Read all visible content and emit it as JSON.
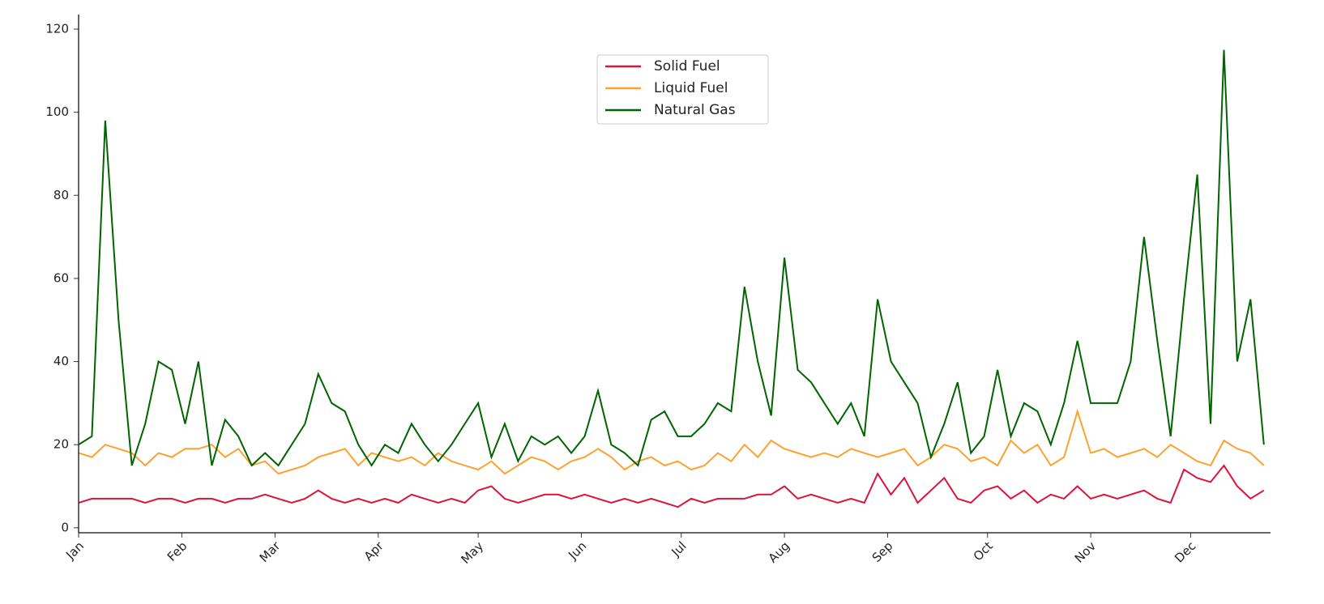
{
  "chart_data": {
    "type": "line",
    "x": [
      0,
      4,
      8,
      12,
      16,
      20,
      24,
      28,
      32,
      36,
      40,
      44,
      48,
      52,
      56,
      60,
      64,
      68,
      72,
      76,
      80,
      84,
      88,
      92,
      96,
      100,
      104,
      108,
      112,
      116,
      120,
      124,
      128,
      132,
      136,
      140,
      144,
      148,
      152,
      156,
      160,
      164,
      168,
      172,
      176,
      180,
      184,
      188,
      192,
      196,
      200,
      204,
      208,
      212,
      216,
      220,
      224,
      228,
      232,
      236,
      240,
      244,
      248,
      252,
      256,
      260,
      264,
      268,
      272,
      276,
      280,
      284,
      288,
      292,
      296,
      300,
      304,
      308,
      312,
      316,
      320,
      324,
      328,
      332,
      336,
      340,
      344,
      348,
      352,
      356
    ],
    "series": [
      {
        "name": "Solid Fuel",
        "color": "#dc143c",
        "values": [
          6,
          7,
          7,
          7,
          7,
          6,
          7,
          7,
          6,
          7,
          7,
          6,
          7,
          7,
          8,
          7,
          6,
          7,
          9,
          7,
          6,
          7,
          6,
          7,
          6,
          8,
          7,
          6,
          7,
          6,
          9,
          10,
          7,
          6,
          7,
          8,
          8,
          7,
          8,
          7,
          6,
          7,
          6,
          7,
          6,
          5,
          7,
          6,
          7,
          7,
          7,
          8,
          8,
          10,
          7,
          8,
          7,
          6,
          7,
          6,
          13,
          8,
          12,
          6,
          9,
          12,
          7,
          6,
          9,
          10,
          7,
          9,
          6,
          8,
          7,
          10,
          7,
          8,
          7,
          8,
          9,
          7,
          6,
          14,
          12,
          11,
          15,
          10,
          7,
          9
        ]
      },
      {
        "name": "Liquid Fuel",
        "color": "#ffa12f",
        "values": [
          18,
          17,
          20,
          19,
          18,
          15,
          18,
          17,
          19,
          19,
          20,
          17,
          19,
          15,
          16,
          13,
          14,
          15,
          17,
          18,
          19,
          15,
          18,
          17,
          16,
          17,
          15,
          18,
          16,
          15,
          14,
          16,
          13,
          15,
          17,
          16,
          14,
          16,
          17,
          19,
          17,
          14,
          16,
          17,
          15,
          16,
          14,
          15,
          18,
          16,
          20,
          17,
          21,
          19,
          18,
          17,
          18,
          17,
          19,
          18,
          17,
          18,
          19,
          15,
          17,
          20,
          19,
          16,
          17,
          15,
          21,
          18,
          20,
          15,
          17,
          28,
          18,
          19,
          17,
          18,
          19,
          17,
          20,
          18,
          16,
          15,
          21,
          19,
          18,
          15
        ]
      },
      {
        "name": "Natural Gas",
        "color": "#006400",
        "values": [
          20,
          22,
          98,
          50,
          15,
          25,
          40,
          38,
          25,
          40,
          15,
          26,
          22,
          15,
          18,
          15,
          20,
          25,
          37,
          30,
          28,
          20,
          15,
          20,
          18,
          25,
          20,
          16,
          20,
          25,
          30,
          17,
          25,
          16,
          22,
          20,
          22,
          18,
          22,
          33,
          20,
          18,
          15,
          26,
          28,
          22,
          22,
          25,
          30,
          28,
          58,
          40,
          27,
          65,
          38,
          35,
          30,
          25,
          30,
          22,
          55,
          40,
          35,
          30,
          17,
          25,
          35,
          18,
          22,
          38,
          22,
          30,
          28,
          20,
          30,
          45,
          30,
          30,
          30,
          40,
          70,
          45,
          22,
          55,
          85,
          25,
          115,
          40,
          55,
          20
        ]
      }
    ],
    "xlim": [
      0,
      358
    ],
    "xticks": [
      {
        "value": 0,
        "label": "Jan"
      },
      {
        "value": 31,
        "label": "Feb"
      },
      {
        "value": 59,
        "label": "Mar"
      },
      {
        "value": 90,
        "label": "Apr"
      },
      {
        "value": 120,
        "label": "May"
      },
      {
        "value": 151,
        "label": "Jun"
      },
      {
        "value": 181,
        "label": "Jul"
      },
      {
        "value": 212,
        "label": "Aug"
      },
      {
        "value": 243,
        "label": "Sep"
      },
      {
        "value": 273,
        "label": "Oct"
      },
      {
        "value": 304,
        "label": "Nov"
      },
      {
        "value": 334,
        "label": "Dec"
      }
    ],
    "ylim": [
      -1.2,
      123.5
    ],
    "yticks": [
      0,
      20,
      40,
      60,
      80,
      100,
      120
    ],
    "legend": "upper center"
  }
}
